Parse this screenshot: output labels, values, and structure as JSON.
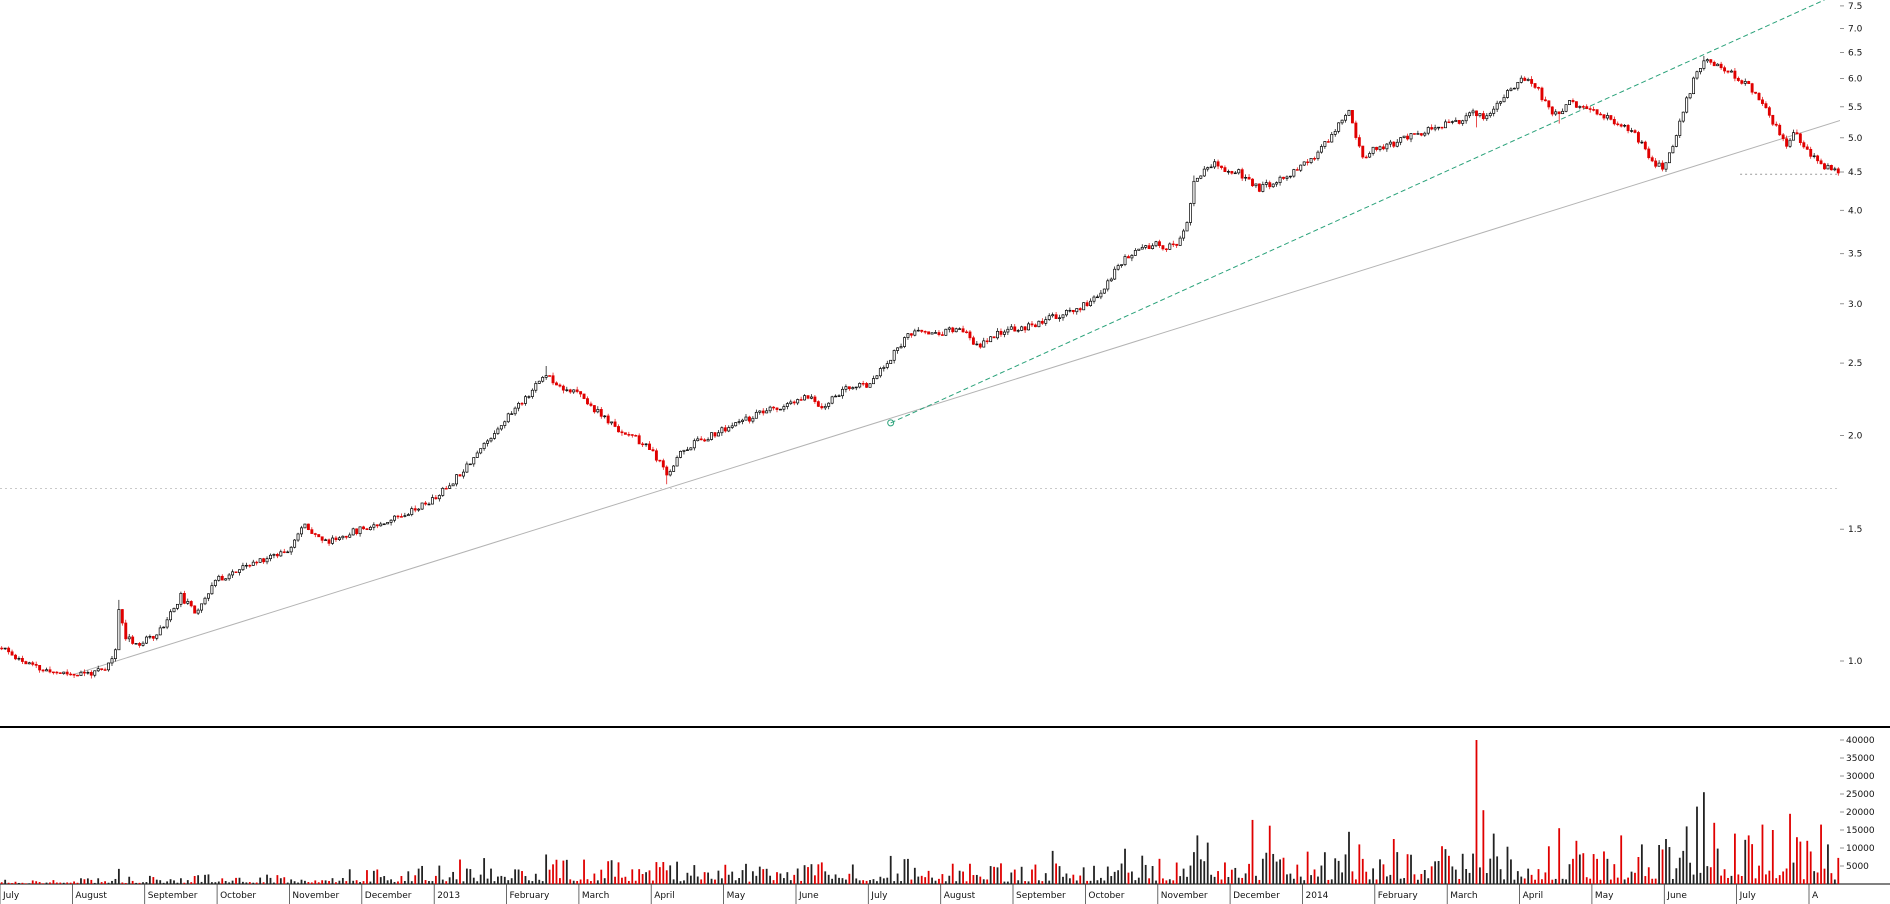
{
  "chart_data": {
    "type": "candlestick",
    "subtype": "price-panel-with-volume-panel",
    "scale": "logarithmic",
    "title": "",
    "price_axis": {
      "side": "right",
      "ticks": [
        7.5,
        7.0,
        6.5,
        6.0,
        5.5,
        5.0,
        4.5,
        4.0,
        3.5,
        3.0,
        2.5,
        2.0,
        1.5,
        1.0
      ]
    },
    "volume_axis": {
      "side": "right",
      "ticks": [
        40000,
        35000,
        30000,
        25000,
        20000,
        15000,
        10000,
        5000
      ],
      "max": 40000
    },
    "x_axis": {
      "month_labels": [
        "July",
        "August",
        "September",
        "October",
        "November",
        "December",
        "2013",
        "February",
        "March",
        "April",
        "May",
        "June",
        "July",
        "August",
        "September",
        "October",
        "November",
        "December",
        "2014",
        "February",
        "March",
        "April",
        "May",
        "June",
        "July",
        "A"
      ],
      "bars_per_month": 21,
      "total_bars": 534
    },
    "price_waypoints": [
      [
        0,
        1.04
      ],
      [
        6,
        1.0
      ],
      [
        12,
        0.97
      ],
      [
        22,
        0.96
      ],
      [
        30,
        0.97
      ],
      [
        33,
        1.03
      ],
      [
        34,
        1.17
      ],
      [
        36,
        1.08
      ],
      [
        40,
        1.05
      ],
      [
        46,
        1.1
      ],
      [
        52,
        1.22
      ],
      [
        56,
        1.16
      ],
      [
        62,
        1.28
      ],
      [
        70,
        1.33
      ],
      [
        76,
        1.37
      ],
      [
        83,
        1.41
      ],
      [
        88,
        1.52
      ],
      [
        94,
        1.44
      ],
      [
        99,
        1.47
      ],
      [
        104,
        1.5
      ],
      [
        112,
        1.54
      ],
      [
        120,
        1.6
      ],
      [
        125,
        1.64
      ],
      [
        130,
        1.72
      ],
      [
        136,
        1.85
      ],
      [
        141,
        1.97
      ],
      [
        146,
        2.1
      ],
      [
        152,
        2.25
      ],
      [
        158,
        2.42
      ],
      [
        162,
        2.33
      ],
      [
        167,
        2.28
      ],
      [
        172,
        2.17
      ],
      [
        178,
        2.05
      ],
      [
        184,
        1.98
      ],
      [
        189,
        1.9
      ],
      [
        193,
        1.77
      ],
      [
        197,
        1.9
      ],
      [
        202,
        1.97
      ],
      [
        208,
        2.02
      ],
      [
        214,
        2.08
      ],
      [
        221,
        2.15
      ],
      [
        229,
        2.2
      ],
      [
        234,
        2.26
      ],
      [
        238,
        2.18
      ],
      [
        244,
        2.3
      ],
      [
        251,
        2.34
      ],
      [
        255,
        2.44
      ],
      [
        259,
        2.58
      ],
      [
        263,
        2.72
      ],
      [
        268,
        2.77
      ],
      [
        272,
        2.73
      ],
      [
        278,
        2.79
      ],
      [
        283,
        2.63
      ],
      [
        288,
        2.72
      ],
      [
        293,
        2.77
      ],
      [
        299,
        2.81
      ],
      [
        305,
        2.88
      ],
      [
        312,
        2.95
      ],
      [
        318,
        3.06
      ],
      [
        322,
        3.26
      ],
      [
        326,
        3.46
      ],
      [
        330,
        3.53
      ],
      [
        335,
        3.6
      ],
      [
        338,
        3.56
      ],
      [
        342,
        3.64
      ],
      [
        344,
        3.82
      ],
      [
        346,
        4.35
      ],
      [
        349,
        4.56
      ],
      [
        352,
        4.63
      ],
      [
        355,
        4.47
      ],
      [
        358,
        4.53
      ],
      [
        361,
        4.41
      ],
      [
        365,
        4.28
      ],
      [
        369,
        4.36
      ],
      [
        373,
        4.46
      ],
      [
        377,
        4.56
      ],
      [
        381,
        4.71
      ],
      [
        385,
        4.96
      ],
      [
        388,
        5.22
      ],
      [
        391,
        5.42
      ],
      [
        393,
        5.05
      ],
      [
        395,
        4.72
      ],
      [
        398,
        4.82
      ],
      [
        402,
        4.86
      ],
      [
        406,
        4.96
      ],
      [
        410,
        5.06
      ],
      [
        414,
        5.12
      ],
      [
        419,
        5.2
      ],
      [
        423,
        5.27
      ],
      [
        427,
        5.42
      ],
      [
        430,
        5.3
      ],
      [
        434,
        5.52
      ],
      [
        437,
        5.76
      ],
      [
        441,
        5.98
      ],
      [
        443,
        6.03
      ],
      [
        446,
        5.78
      ],
      [
        449,
        5.46
      ],
      [
        452,
        5.34
      ],
      [
        455,
        5.57
      ],
      [
        458,
        5.5
      ],
      [
        461,
        5.42
      ],
      [
        465,
        5.36
      ],
      [
        469,
        5.21
      ],
      [
        473,
        5.1
      ],
      [
        476,
        4.92
      ],
      [
        479,
        4.64
      ],
      [
        482,
        4.56
      ],
      [
        486,
        5.02
      ],
      [
        489,
        5.62
      ],
      [
        492,
        6.12
      ],
      [
        494,
        6.38
      ],
      [
        497,
        6.26
      ],
      [
        500,
        6.16
      ],
      [
        503,
        6.05
      ],
      [
        506,
        5.92
      ],
      [
        509,
        5.72
      ],
      [
        512,
        5.48
      ],
      [
        515,
        5.15
      ],
      [
        518,
        4.88
      ],
      [
        520,
        5.06
      ],
      [
        522,
        4.96
      ],
      [
        524,
        4.78
      ],
      [
        527,
        4.64
      ],
      [
        530,
        4.56
      ],
      [
        533,
        4.5
      ]
    ],
    "long_wicks": [
      [
        34,
        "up",
        0.03
      ],
      [
        158,
        "up",
        0.03
      ],
      [
        193,
        "down",
        0.028
      ],
      [
        346,
        "up",
        0.018
      ],
      [
        428,
        "down",
        0.035
      ],
      [
        452,
        "down",
        0.03
      ],
      [
        494,
        "up",
        0.015
      ]
    ],
    "volume_waypoints": [
      [
        0,
        700
      ],
      [
        25,
        850
      ],
      [
        55,
        1200
      ],
      [
        85,
        1500
      ],
      [
        115,
        2100
      ],
      [
        130,
        3000
      ],
      [
        150,
        3000
      ],
      [
        170,
        3300
      ],
      [
        190,
        3000
      ],
      [
        210,
        2700
      ],
      [
        230,
        2500
      ],
      [
        250,
        3000
      ],
      [
        265,
        3300
      ],
      [
        285,
        2500
      ],
      [
        305,
        3000
      ],
      [
        325,
        3400
      ],
      [
        340,
        3900
      ],
      [
        360,
        4400
      ],
      [
        378,
        4200
      ],
      [
        395,
        4700
      ],
      [
        412,
        4400
      ],
      [
        430,
        4900
      ],
      [
        448,
        4700
      ],
      [
        465,
        4500
      ],
      [
        482,
        5200
      ],
      [
        495,
        6200
      ],
      [
        510,
        5800
      ],
      [
        525,
        5100
      ],
      [
        533,
        4200
      ]
    ],
    "volume_spikes": [
      [
        34,
        4200
      ],
      [
        133,
        6800
      ],
      [
        140,
        7200
      ],
      [
        158,
        8200
      ],
      [
        163,
        6500
      ],
      [
        196,
        6200
      ],
      [
        216,
        5600
      ],
      [
        258,
        7800
      ],
      [
        262,
        6900
      ],
      [
        305,
        9200
      ],
      [
        326,
        9800
      ],
      [
        347,
        13500
      ],
      [
        350,
        11500
      ],
      [
        363,
        17800
      ],
      [
        368,
        16200
      ],
      [
        391,
        14500
      ],
      [
        394,
        11000
      ],
      [
        404,
        12500
      ],
      [
        418,
        10500
      ],
      [
        428,
        40000,
        "down"
      ],
      [
        430,
        20500
      ],
      [
        433,
        14000
      ],
      [
        452,
        15500
      ],
      [
        457,
        12000
      ],
      [
        470,
        13500
      ],
      [
        476,
        11000
      ],
      [
        483,
        12500
      ],
      [
        489,
        16000
      ],
      [
        492,
        21500
      ],
      [
        494,
        25500
      ],
      [
        497,
        17000
      ],
      [
        503,
        14000
      ],
      [
        507,
        13500
      ],
      [
        511,
        16500
      ],
      [
        514,
        15000
      ],
      [
        519,
        19500,
        "down"
      ],
      [
        521,
        13000
      ],
      [
        524,
        12000
      ],
      [
        528,
        16500
      ],
      [
        530,
        11000
      ]
    ],
    "trendlines": [
      {
        "name": "primary-support-trendline",
        "style": "solid",
        "color": "#b3b3b3",
        "from": [
          21,
          0.96
        ],
        "to": [
          534,
          5.28
        ]
      },
      {
        "name": "accelerated-trendline",
        "style": "dashed",
        "color": "#2aa27a",
        "from": [
          258,
          2.08
        ],
        "to": [
          529,
          7.64
        ],
        "handle": true
      }
    ],
    "horizontal_lines": [
      {
        "name": "level-1-70",
        "price": 1.7,
        "from_bar": 0,
        "to_bar": 534,
        "style": "dotted",
        "color": "#c9c9c9"
      },
      {
        "name": "last-price-level",
        "price": 4.47,
        "from_bar": 505,
        "to_bar": 534,
        "style": "dotted",
        "color": "#9a9a9a"
      }
    ],
    "last_close": 4.5,
    "colors": {
      "up_fill": "#ffffff",
      "up_stroke": "#000000",
      "down": "#e00000",
      "volume_up": "#222222",
      "volume_down": "#e00000",
      "axis_text": "#111111",
      "background": "#ffffff"
    },
    "noise_seed": 11
  }
}
